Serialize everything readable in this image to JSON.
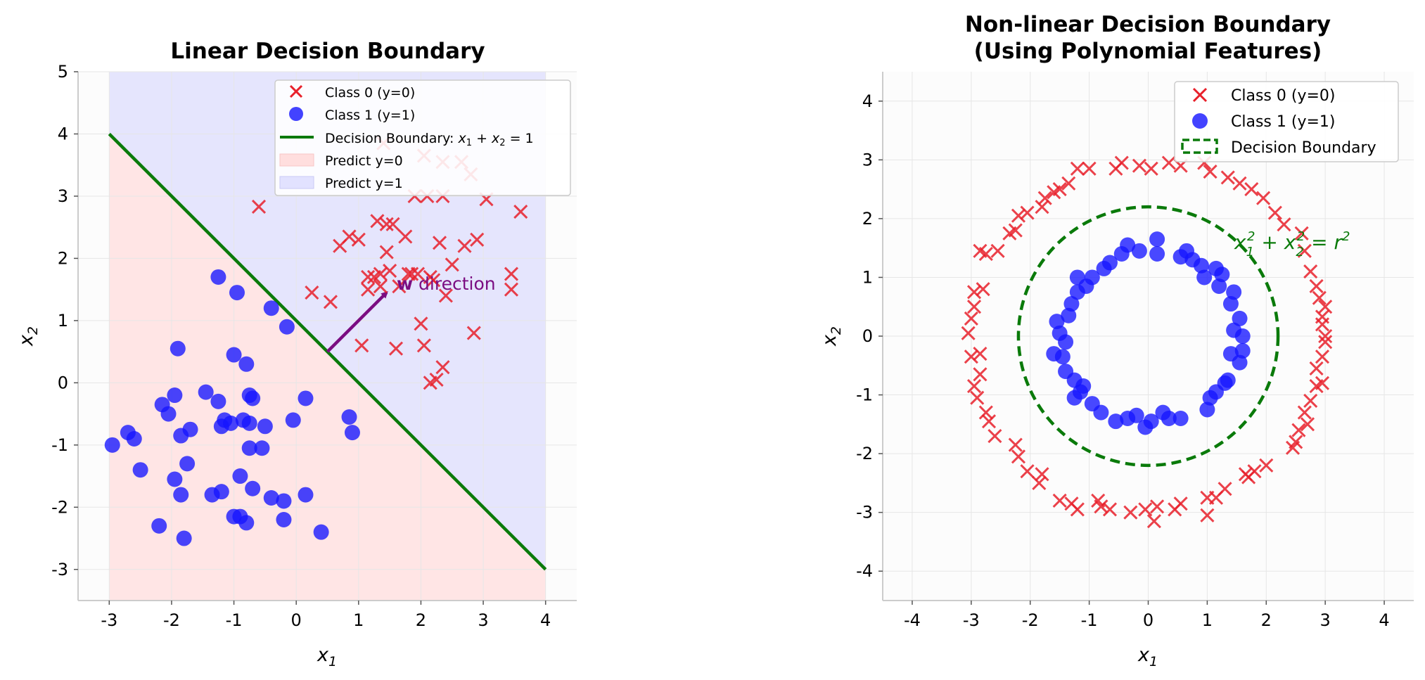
{
  "chart_data": [
    {
      "type": "scatter",
      "title": "Linear Decision Boundary",
      "xlabel": "x1",
      "ylabel": "x2",
      "xlim": [
        -3.5,
        4.5
      ],
      "ylim": [
        -3.5,
        5
      ],
      "xticks": [
        "-3",
        "-2",
        "-1",
        "0",
        "1",
        "2",
        "3",
        "4"
      ],
      "yticks": [
        "-3",
        "-2",
        "-1",
        "0",
        "1",
        "2",
        "3",
        "4",
        "5"
      ],
      "grid": true,
      "legend_position": "top-right",
      "legend": [
        "Class 0 (y=0)",
        "Class 1 (y=1)",
        "Decision Boundary: x1 + x2 = 1",
        "Predict y=0",
        "Predict y=1"
      ],
      "annotation": "w direction",
      "boundary": {
        "x": [
          -3,
          4
        ],
        "y": [
          4,
          -3
        ]
      },
      "region_x": [
        -3,
        4
      ],
      "arrow": {
        "from": [
          0.5,
          0.5
        ],
        "to": [
          1.45,
          1.45
        ]
      },
      "series": [
        {
          "name": "Class 0 (y=0)",
          "marker": "x",
          "color": "#e8202a",
          "points": [
            [
              -0.6,
              2.83
            ],
            [
              0.25,
              1.45
            ],
            [
              0.55,
              1.3
            ],
            [
              0.7,
              2.2
            ],
            [
              0.85,
              2.35
            ],
            [
              1.0,
              2.3
            ],
            [
              1.05,
              0.6
            ],
            [
              1.15,
              1.7
            ],
            [
              1.15,
              1.5
            ],
            [
              1.25,
              1.7
            ],
            [
              1.3,
              2.6
            ],
            [
              1.35,
              1.75
            ],
            [
              1.35,
              1.55
            ],
            [
              1.4,
              3.85
            ],
            [
              1.45,
              2.55
            ],
            [
              1.45,
              2.1
            ],
            [
              1.5,
              1.8
            ],
            [
              1.55,
              2.55
            ],
            [
              1.6,
              0.55
            ],
            [
              1.65,
              1.55
            ],
            [
              1.75,
              2.35
            ],
            [
              1.8,
              1.75
            ],
            [
              1.85,
              1.75
            ],
            [
              1.9,
              3.0
            ],
            [
              1.95,
              1.75
            ],
            [
              2.0,
              0.95
            ],
            [
              2.05,
              3.65
            ],
            [
              2.05,
              0.6
            ],
            [
              2.1,
              3.0
            ],
            [
              2.15,
              1.7
            ],
            [
              2.15,
              0.0
            ],
            [
              2.2,
              1.65
            ],
            [
              2.25,
              0.05
            ],
            [
              2.3,
              2.25
            ],
            [
              2.35,
              3.55
            ],
            [
              2.35,
              3.0
            ],
            [
              2.35,
              0.25
            ],
            [
              2.4,
              1.4
            ],
            [
              2.5,
              1.9
            ],
            [
              2.65,
              3.55
            ],
            [
              2.7,
              2.2
            ],
            [
              2.8,
              3.35
            ],
            [
              2.85,
              0.8
            ],
            [
              2.9,
              2.3
            ],
            [
              3.05,
              2.95
            ],
            [
              3.45,
              1.75
            ],
            [
              3.45,
              1.5
            ],
            [
              3.6,
              2.75
            ]
          ]
        },
        {
          "name": "Class 1 (y=1)",
          "marker": "o",
          "color": "#1414ff",
          "points": [
            [
              -2.95,
              -1.0
            ],
            [
              -2.7,
              -0.8
            ],
            [
              -2.6,
              -0.9
            ],
            [
              -2.5,
              -1.4
            ],
            [
              -2.2,
              -2.3
            ],
            [
              -2.15,
              -0.35
            ],
            [
              -2.05,
              -0.5
            ],
            [
              -1.95,
              -0.2
            ],
            [
              -1.95,
              -1.55
            ],
            [
              -1.9,
              0.55
            ],
            [
              -1.85,
              -1.8
            ],
            [
              -1.85,
              -0.85
            ],
            [
              -1.8,
              -2.5
            ],
            [
              -1.75,
              -1.3
            ],
            [
              -1.7,
              -0.75
            ],
            [
              -1.45,
              -0.15
            ],
            [
              -1.35,
              -1.8
            ],
            [
              -1.25,
              1.7
            ],
            [
              -1.25,
              -0.3
            ],
            [
              -1.2,
              -1.75
            ],
            [
              -1.2,
              -0.7
            ],
            [
              -1.15,
              -0.6
            ],
            [
              -1.05,
              -0.65
            ],
            [
              -1.0,
              -2.15
            ],
            [
              -1.0,
              0.45
            ],
            [
              -0.95,
              1.45
            ],
            [
              -0.9,
              -2.15
            ],
            [
              -0.9,
              -1.5
            ],
            [
              -0.85,
              -0.6
            ],
            [
              -0.8,
              0.3
            ],
            [
              -0.8,
              -2.25
            ],
            [
              -0.75,
              -0.65
            ],
            [
              -0.75,
              -1.05
            ],
            [
              -0.75,
              -0.2
            ],
            [
              -0.7,
              -1.7
            ],
            [
              -0.7,
              -0.25
            ],
            [
              -0.55,
              -1.05
            ],
            [
              -0.5,
              -0.7
            ],
            [
              -0.4,
              1.2
            ],
            [
              -0.4,
              -1.85
            ],
            [
              -0.2,
              -2.2
            ],
            [
              -0.2,
              -1.9
            ],
            [
              -0.15,
              0.9
            ],
            [
              -0.05,
              -0.6
            ],
            [
              0.15,
              -0.25
            ],
            [
              0.15,
              -1.8
            ],
            [
              0.4,
              -2.4
            ],
            [
              0.85,
              -0.55
            ],
            [
              0.9,
              -0.8
            ]
          ]
        }
      ]
    },
    {
      "type": "scatter",
      "title": "Non-linear Decision Boundary\n(Using Polynomial Features)",
      "title_lines": [
        "Non-linear Decision Boundary",
        "(Using Polynomial Features)"
      ],
      "xlabel": "x1",
      "ylabel": "x2",
      "xlim": [
        -4.5,
        4.5
      ],
      "ylim": [
        -4.5,
        4.5
      ],
      "xticks": [
        "-4",
        "-3",
        "-2",
        "-1",
        "0",
        "1",
        "2",
        "3",
        "4"
      ],
      "yticks": [
        "-4",
        "-3",
        "-2",
        "-1",
        "0",
        "1",
        "2",
        "3",
        "4"
      ],
      "grid": true,
      "legend_position": "top-right",
      "legend": [
        "Class 0 (y=0)",
        "Class 1 (y=1)",
        "Decision Boundary"
      ],
      "annotation": "x1^2 + x2^2 = r^2",
      "boundary_circle": {
        "cx": 0,
        "cy": 0,
        "r": 2.2
      },
      "series": [
        {
          "name": "Class 0 (y=0)",
          "marker": "x",
          "color": "#e8202a",
          "points": [
            [
              3.0,
              0.0
            ],
            [
              2.95,
              0.33
            ],
            [
              2.85,
              0.85
            ],
            [
              2.9,
              0.65
            ],
            [
              2.75,
              1.1
            ],
            [
              2.65,
              1.45
            ],
            [
              2.6,
              1.75
            ],
            [
              2.3,
              1.9
            ],
            [
              2.15,
              2.1
            ],
            [
              1.95,
              2.35
            ],
            [
              1.75,
              2.5
            ],
            [
              1.55,
              2.6
            ],
            [
              1.35,
              2.7
            ],
            [
              1.05,
              2.8
            ],
            [
              0.95,
              2.95
            ],
            [
              0.55,
              2.9
            ],
            [
              0.35,
              2.95
            ],
            [
              0.05,
              2.85
            ],
            [
              -0.15,
              2.9
            ],
            [
              -0.45,
              2.95
            ],
            [
              -0.55,
              2.85
            ],
            [
              -1.0,
              2.85
            ],
            [
              -1.2,
              2.85
            ],
            [
              -1.35,
              2.6
            ],
            [
              -1.5,
              2.5
            ],
            [
              -1.6,
              2.45
            ],
            [
              -1.8,
              2.2
            ],
            [
              -1.75,
              2.35
            ],
            [
              -2.05,
              2.1
            ],
            [
              -2.2,
              2.05
            ],
            [
              -2.25,
              1.8
            ],
            [
              -2.35,
              1.75
            ],
            [
              -2.55,
              1.45
            ],
            [
              -2.75,
              1.4
            ],
            [
              -2.85,
              1.45
            ],
            [
              -2.8,
              0.8
            ],
            [
              -2.95,
              0.75
            ],
            [
              -2.95,
              0.5
            ],
            [
              -3.0,
              0.3
            ],
            [
              -3.05,
              0.05
            ],
            [
              -2.85,
              -0.3
            ],
            [
              -3.0,
              -0.35
            ],
            [
              -2.85,
              -0.65
            ],
            [
              -2.95,
              -0.85
            ],
            [
              -2.9,
              -1.05
            ],
            [
              -2.75,
              -1.3
            ],
            [
              -2.7,
              -1.45
            ],
            [
              -2.6,
              -1.7
            ],
            [
              -2.25,
              -1.85
            ],
            [
              -2.2,
              -2.05
            ],
            [
              -2.05,
              -2.3
            ],
            [
              -1.8,
              -2.35
            ],
            [
              -1.85,
              -2.5
            ],
            [
              -1.5,
              -2.8
            ],
            [
              -1.3,
              -2.85
            ],
            [
              -1.2,
              -2.95
            ],
            [
              -0.85,
              -2.8
            ],
            [
              -0.8,
              -2.9
            ],
            [
              -0.65,
              -2.95
            ],
            [
              -0.3,
              -3.0
            ],
            [
              -0.05,
              -2.95
            ],
            [
              0.1,
              -3.15
            ],
            [
              0.15,
              -2.9
            ],
            [
              0.45,
              -2.95
            ],
            [
              0.55,
              -2.85
            ],
            [
              1.0,
              -2.75
            ],
            [
              1.0,
              -3.05
            ],
            [
              1.15,
              -2.75
            ],
            [
              1.3,
              -2.6
            ],
            [
              1.65,
              -2.35
            ],
            [
              1.7,
              -2.4
            ],
            [
              1.8,
              -2.3
            ],
            [
              2.0,
              -2.2
            ],
            [
              2.45,
              -1.9
            ],
            [
              2.5,
              -1.8
            ],
            [
              2.55,
              -1.6
            ],
            [
              2.65,
              -1.3
            ],
            [
              2.75,
              -1.1
            ],
            [
              2.7,
              -1.5
            ],
            [
              2.85,
              -0.85
            ],
            [
              2.95,
              -0.8
            ],
            [
              2.85,
              -0.55
            ],
            [
              2.95,
              -0.35
            ],
            [
              3.0,
              -0.1
            ],
            [
              2.95,
              0.2
            ],
            [
              3.0,
              0.5
            ]
          ]
        },
        {
          "name": "Class 1 (y=1)",
          "marker": "o",
          "color": "#1414ff",
          "points": [
            [
              1.6,
              0.0
            ],
            [
              1.55,
              0.3
            ],
            [
              1.6,
              -0.25
            ],
            [
              1.55,
              -0.45
            ],
            [
              1.45,
              0.75
            ],
            [
              1.4,
              0.55
            ],
            [
              1.35,
              -0.75
            ],
            [
              1.25,
              1.05
            ],
            [
              1.15,
              1.15
            ],
            [
              1.05,
              -1.05
            ],
            [
              1.0,
              -1.25
            ],
            [
              0.9,
              1.2
            ],
            [
              0.75,
              1.3
            ],
            [
              0.65,
              1.45
            ],
            [
              0.55,
              1.35
            ],
            [
              0.55,
              -1.4
            ],
            [
              0.35,
              -1.4
            ],
            [
              0.15,
              1.65
            ],
            [
              0.15,
              1.4
            ],
            [
              0.05,
              -1.45
            ],
            [
              -0.05,
              -1.55
            ],
            [
              -0.15,
              1.45
            ],
            [
              -0.35,
              1.55
            ],
            [
              -0.35,
              -1.4
            ],
            [
              -0.45,
              1.4
            ],
            [
              -0.55,
              -1.45
            ],
            [
              -0.65,
              1.25
            ],
            [
              -0.75,
              1.15
            ],
            [
              -0.8,
              -1.3
            ],
            [
              -0.95,
              1.0
            ],
            [
              -0.95,
              -1.15
            ],
            [
              -1.05,
              0.85
            ],
            [
              -1.15,
              -0.95
            ],
            [
              -1.2,
              0.75
            ],
            [
              -1.25,
              -0.75
            ],
            [
              -1.3,
              0.55
            ],
            [
              -1.4,
              -0.6
            ],
            [
              -1.35,
              0.35
            ],
            [
              -1.5,
              0.05
            ],
            [
              -1.4,
              -0.1
            ],
            [
              -1.45,
              -0.35
            ],
            [
              -1.55,
              0.25
            ],
            [
              -1.6,
              -0.3
            ],
            [
              -1.25,
              -1.05
            ],
            [
              -1.1,
              -0.85
            ],
            [
              -1.2,
              1.0
            ],
            [
              1.15,
              -0.95
            ],
            [
              1.3,
              -0.8
            ],
            [
              1.4,
              -0.3
            ],
            [
              1.45,
              0.1
            ],
            [
              1.2,
              0.85
            ],
            [
              0.95,
              1.0
            ],
            [
              -0.2,
              -1.35
            ],
            [
              0.25,
              -1.3
            ]
          ]
        }
      ]
    }
  ]
}
